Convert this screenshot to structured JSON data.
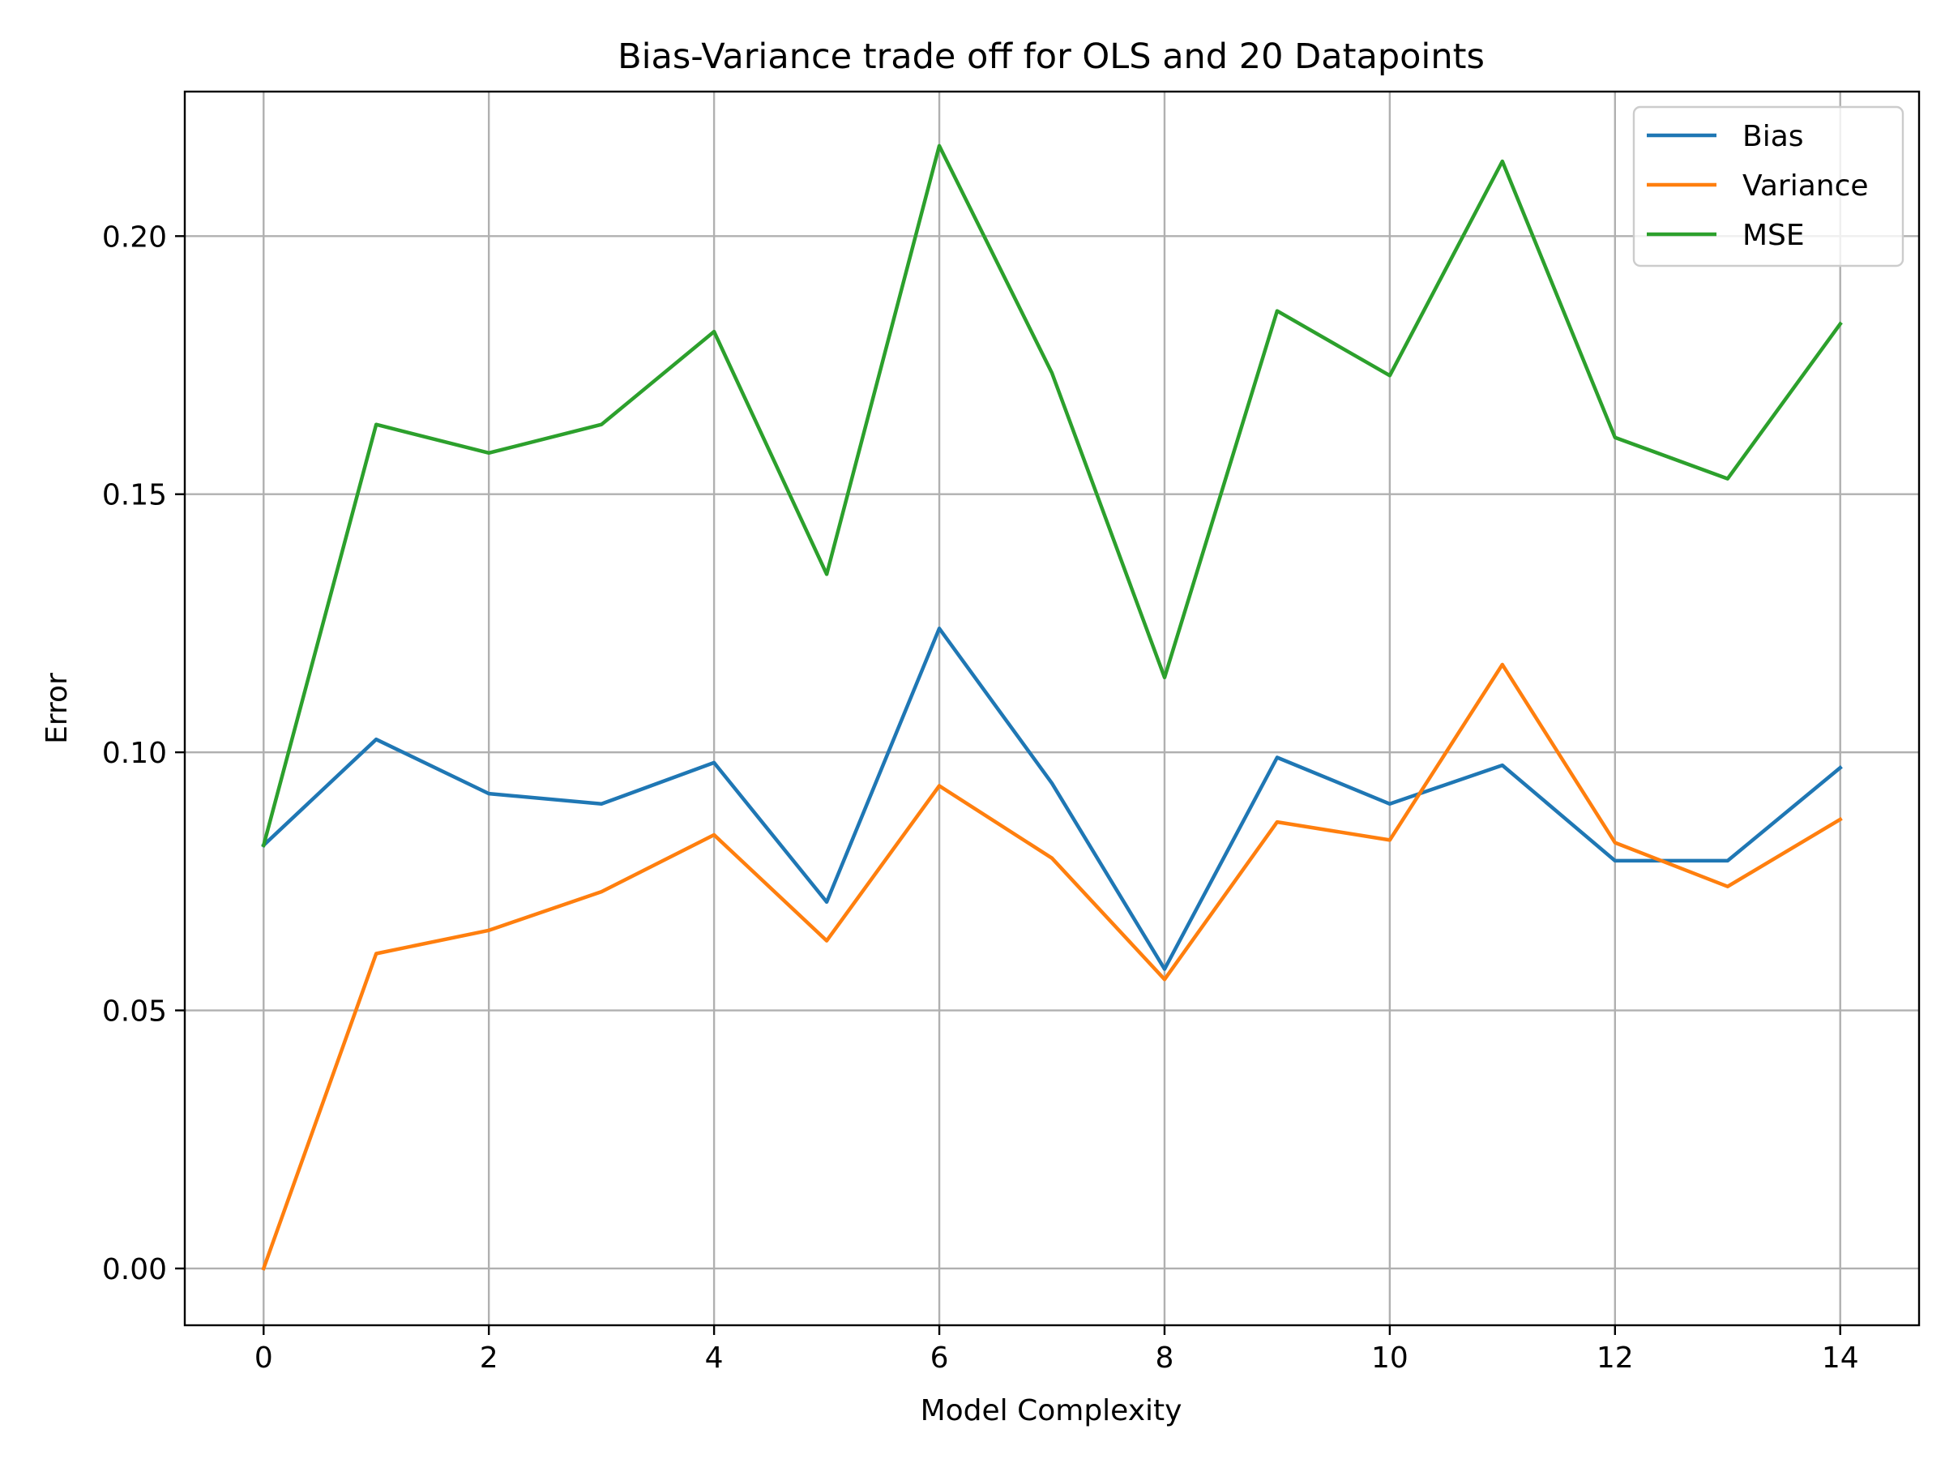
{
  "chart_data": {
    "type": "line",
    "title": "Bias-Variance trade off for OLS and 20 Datapoints",
    "xlabel": "Model Complexity",
    "ylabel": "Error",
    "x": [
      0,
      1,
      2,
      3,
      4,
      5,
      6,
      7,
      8,
      9,
      10,
      11,
      12,
      13,
      14
    ],
    "xlim": [
      -0.7,
      14.7
    ],
    "ylim": [
      -0.011,
      0.228
    ],
    "x_ticks": [
      0,
      2,
      4,
      6,
      8,
      10,
      12,
      14
    ],
    "x_tick_labels": [
      "0",
      "2",
      "4",
      "6",
      "8",
      "10",
      "12",
      "14"
    ],
    "y_ticks": [
      0.0,
      0.05,
      0.1,
      0.15,
      0.2
    ],
    "y_tick_labels": [
      "0.00",
      "0.05",
      "0.10",
      "0.15",
      "0.20"
    ],
    "grid": true,
    "legend_position": "top-right",
    "series": [
      {
        "name": "Bias",
        "color": "#1f77b4",
        "values": [
          0.082,
          0.1025,
          0.092,
          0.09,
          0.098,
          0.071,
          0.124,
          0.094,
          0.058,
          0.099,
          0.09,
          0.0975,
          0.079,
          0.079,
          0.097
        ]
      },
      {
        "name": "Variance",
        "color": "#ff7f0e",
        "values": [
          0.0,
          0.061,
          0.0655,
          0.073,
          0.084,
          0.0635,
          0.0935,
          0.0795,
          0.056,
          0.0865,
          0.083,
          0.117,
          0.0825,
          0.074,
          0.087
        ]
      },
      {
        "name": "MSE",
        "color": "#2ca02c",
        "values": [
          0.082,
          0.1635,
          0.158,
          0.1635,
          0.1815,
          0.1345,
          0.2175,
          0.1735,
          0.1145,
          0.1855,
          0.173,
          0.2145,
          0.161,
          0.153,
          0.183
        ]
      }
    ]
  }
}
